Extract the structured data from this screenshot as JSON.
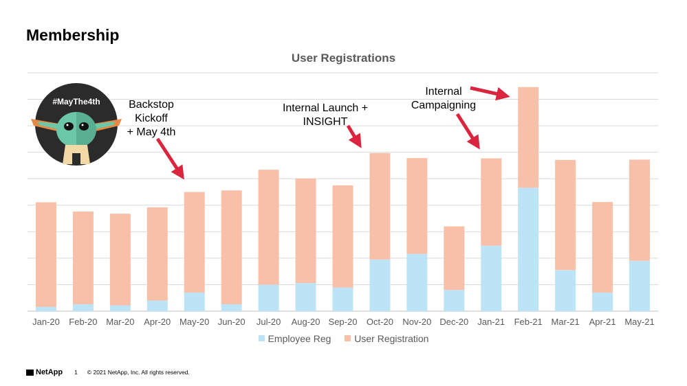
{
  "slide": {
    "title": "Membership"
  },
  "annotations": {
    "backstop": [
      "Backstop",
      "Kickoff",
      "+ May 4th"
    ],
    "internal_launch": [
      "Internal Launch +",
      "INSIGHT"
    ],
    "campaigning": [
      "Internal",
      "Campaigning"
    ]
  },
  "badge": {
    "text": "#MayThe4th"
  },
  "footer": {
    "brand": "NetApp",
    "page": "1",
    "copyright": "© 2021 NetApp, Inc. All rights reserved."
  },
  "colors": {
    "employee": "#bde3f7",
    "user": "#f9c0a9",
    "arrow": "#d9253d",
    "grid": "#d9d9d9",
    "badge_bg": "#2b2b2b",
    "badge_face": "#6cc7a8"
  },
  "chart_data": {
    "type": "bar",
    "stacked": true,
    "title": "User Registrations",
    "categories": [
      "Jan-20",
      "Feb-20",
      "Mar-20",
      "Apr-20",
      "May-20",
      "Jun-20",
      "Jul-20",
      "Aug-20",
      "Sep-20",
      "Oct-20",
      "Nov-20",
      "Dec-20",
      "Jan-21",
      "Feb-21",
      "Mar-21",
      "Apr-21",
      "May-21"
    ],
    "series": [
      {
        "name": "Employee Reg",
        "values": [
          0.16,
          0.26,
          0.22,
          0.4,
          0.7,
          0.26,
          1.0,
          1.06,
          0.89,
          1.95,
          2.16,
          0.8,
          2.47,
          4.66,
          1.55,
          0.7,
          1.9
        ]
      },
      {
        "name": "User Registration",
        "values": [
          3.95,
          3.5,
          3.46,
          3.52,
          3.8,
          4.3,
          4.34,
          3.95,
          3.86,
          4.02,
          3.62,
          2.4,
          3.3,
          3.8,
          4.16,
          3.42,
          3.82
        ]
      }
    ],
    "ylim": [
      0,
      9
    ],
    "yticks": [
      0,
      1,
      2,
      3,
      4,
      5,
      6,
      7,
      8,
      9
    ],
    "ytick_labels_visible": false,
    "grid": true,
    "legend": "bottom"
  }
}
